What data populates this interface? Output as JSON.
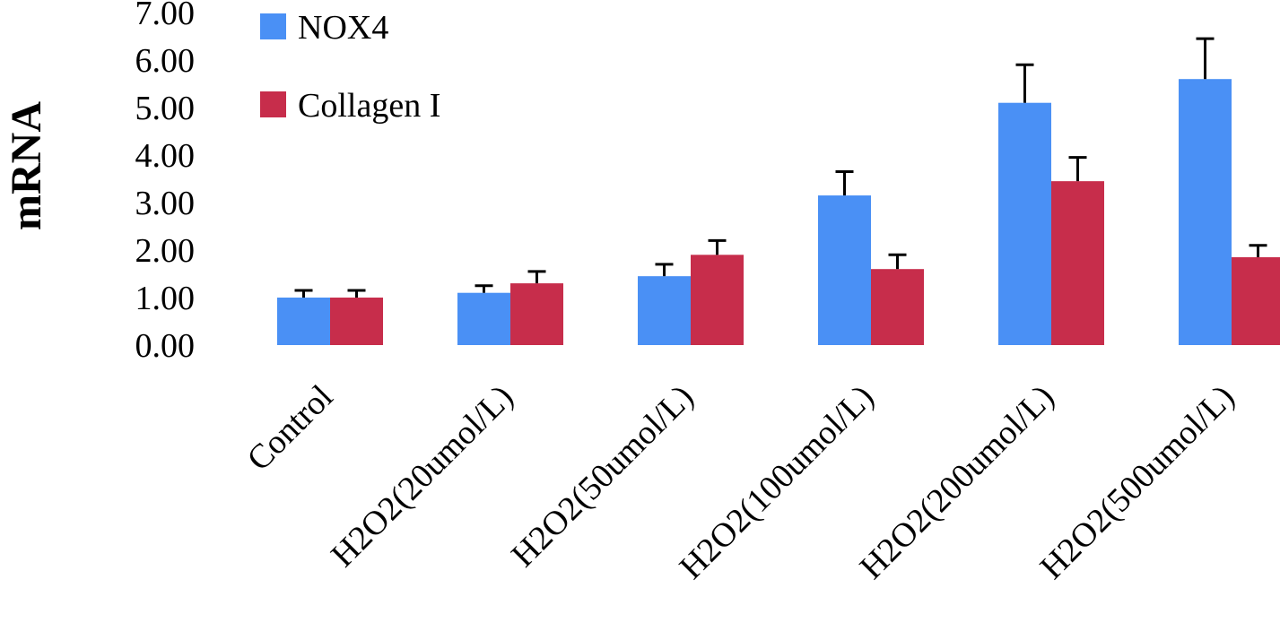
{
  "chart_data": {
    "type": "bar",
    "title": "",
    "xlabel": "",
    "ylabel": "mRNA",
    "ylim": [
      0,
      7
    ],
    "yticks": [
      "0.00",
      "1.00",
      "2.00",
      "3.00",
      "4.00",
      "5.00",
      "6.00",
      "7.00"
    ],
    "grid": false,
    "legend_position": "top-left",
    "categories": [
      "Control",
      "H2O2(20umol/L)",
      "H2O2(50umol/L)",
      "H2O2(100umol/L)",
      "H2O2(200umol/L)",
      "H2O2(500umol/L)"
    ],
    "series": [
      {
        "name": "NOX4",
        "color": "#4A90F5",
        "values": [
          1.0,
          1.1,
          1.45,
          3.15,
          5.1,
          5.6
        ],
        "errors": [
          0.15,
          0.15,
          0.25,
          0.5,
          0.8,
          0.85
        ]
      },
      {
        "name": "Collagen I",
        "color": "#C72D4B",
        "values": [
          1.0,
          1.3,
          1.9,
          1.6,
          3.45,
          1.85
        ],
        "errors": [
          0.15,
          0.25,
          0.3,
          0.3,
          0.5,
          0.25
        ]
      }
    ]
  }
}
